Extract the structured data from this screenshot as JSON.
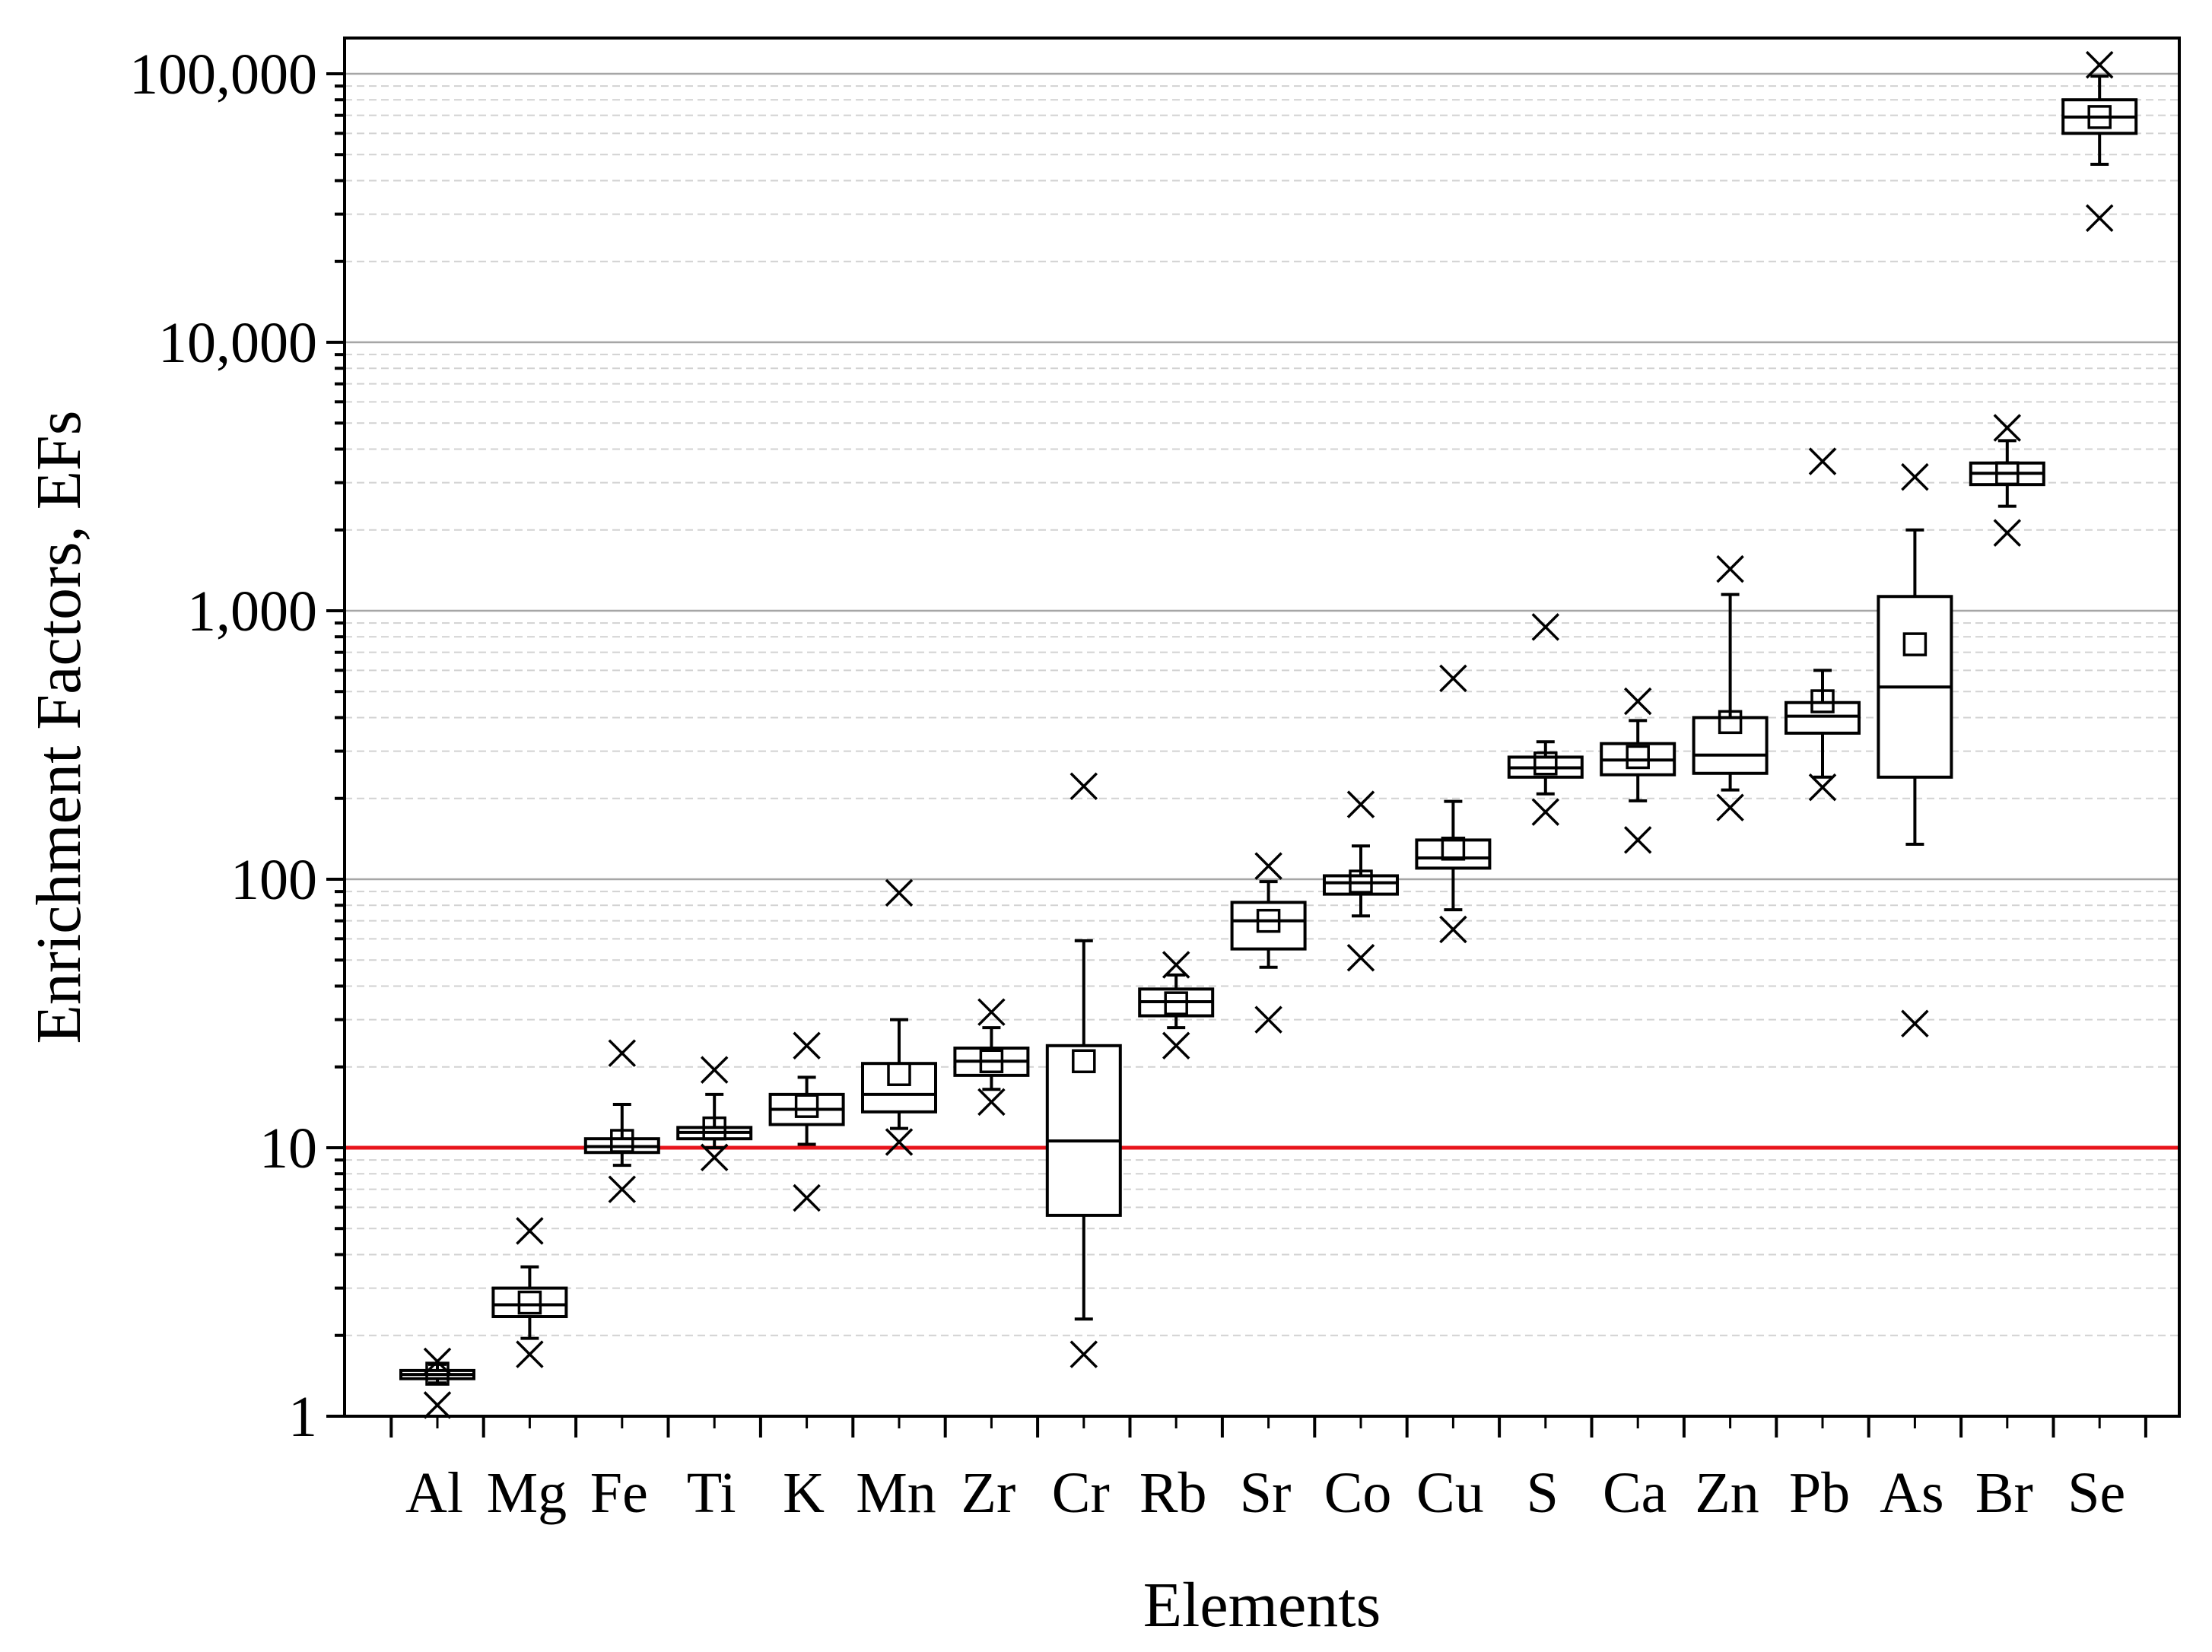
{
  "chart_data": {
    "type": "box",
    "title": "",
    "xlabel": "Elements",
    "ylabel": "Enrichment Factors, EFs",
    "yscale": "log",
    "ylim": [
      1,
      200000
    ],
    "ytick_values": [
      1,
      10,
      100,
      1000,
      10000,
      100000
    ],
    "ytick_labels": [
      "1",
      "10",
      "100",
      "1,000",
      "10,000",
      "100,000"
    ],
    "grid": "horizontal",
    "reference_line": {
      "value": 10,
      "color": "#e8141c"
    },
    "categories": [
      "Al",
      "Mg",
      "Fe",
      "Ti",
      "K",
      "Mn",
      "Zr",
      "Cr",
      "Rb",
      "Sr",
      "Co",
      "Cu",
      "S",
      "Ca",
      "Zn",
      "Pb",
      "As",
      "Br",
      "Se"
    ],
    "boxes": [
      {
        "name": "Al",
        "whisker_low": 1.33,
        "q1": 1.38,
        "median": 1.43,
        "q3": 1.48,
        "whisker_high": 1.56,
        "mean": 1.44,
        "min": 1.1,
        "max": 1.6
      },
      {
        "name": "Mg",
        "whisker_low": 1.95,
        "q1": 2.35,
        "median": 2.6,
        "q3": 3.0,
        "whisker_high": 3.6,
        "mean": 2.65,
        "min": 1.7,
        "max": 4.9
      },
      {
        "name": "Fe",
        "whisker_low": 8.6,
        "q1": 9.6,
        "median": 10.1,
        "q3": 10.8,
        "whisker_high": 14.5,
        "mean": 10.6,
        "min": 7.0,
        "max": 22.5
      },
      {
        "name": "Ti",
        "whisker_low": 10.0,
        "q1": 10.8,
        "median": 11.4,
        "q3": 11.9,
        "whisker_high": 15.8,
        "mean": 11.8,
        "min": 9.2,
        "max": 19.5
      },
      {
        "name": "K",
        "whisker_low": 10.3,
        "q1": 12.2,
        "median": 13.9,
        "q3": 15.8,
        "whisker_high": 18.3,
        "mean": 14.3,
        "min": 6.5,
        "max": 24.0
      },
      {
        "name": "Mn",
        "whisker_low": 11.8,
        "q1": 13.6,
        "median": 15.8,
        "q3": 20.6,
        "whisker_high": 30.0,
        "mean": 18.8,
        "min": 10.5,
        "max": 89.0
      },
      {
        "name": "Zr",
        "whisker_low": 16.5,
        "q1": 18.6,
        "median": 21.0,
        "q3": 23.5,
        "whisker_high": 28.0,
        "mean": 21.0,
        "min": 14.8,
        "max": 32.0
      },
      {
        "name": "Cr",
        "whisker_low": 2.3,
        "q1": 5.6,
        "median": 10.6,
        "q3": 24.0,
        "whisker_high": 59.0,
        "mean": 21.0,
        "min": 1.7,
        "max": 222.0
      },
      {
        "name": "Rb",
        "whisker_low": 28.0,
        "q1": 31.0,
        "median": 35.0,
        "q3": 39.0,
        "whisker_high": 44.0,
        "mean": 34.5,
        "min": 24.0,
        "max": 48.0
      },
      {
        "name": "Sr",
        "whisker_low": 47.0,
        "q1": 55.0,
        "median": 70.0,
        "q3": 82.0,
        "whisker_high": 98.0,
        "mean": 70.0,
        "min": 30.0,
        "max": 112.0
      },
      {
        "name": "Co",
        "whisker_low": 73.0,
        "q1": 88.0,
        "median": 97.0,
        "q3": 103.0,
        "whisker_high": 133.0,
        "mean": 98.0,
        "min": 51.0,
        "max": 190.0
      },
      {
        "name": "Cu",
        "whisker_low": 77.0,
        "q1": 110.0,
        "median": 120.0,
        "q3": 140.0,
        "whisker_high": 195.0,
        "mean": 130.0,
        "min": 65.0,
        "max": 560.0
      },
      {
        "name": "S",
        "whisker_low": 208.0,
        "q1": 240.0,
        "median": 260.0,
        "q3": 285.0,
        "whisker_high": 325.0,
        "mean": 270.0,
        "min": 178.0,
        "max": 870.0
      },
      {
        "name": "Ca",
        "whisker_low": 196.0,
        "q1": 245.0,
        "median": 278.0,
        "q3": 320.0,
        "whisker_high": 390.0,
        "mean": 285.0,
        "min": 140.0,
        "max": 460.0
      },
      {
        "name": "Zn",
        "whisker_low": 215.0,
        "q1": 248.0,
        "median": 290.0,
        "q3": 400.0,
        "whisker_high": 1150.0,
        "mean": 385.0,
        "min": 185.0,
        "max": 1430.0
      },
      {
        "name": "Pb",
        "whisker_low": 240.0,
        "q1": 350.0,
        "median": 405.0,
        "q3": 455.0,
        "whisker_high": 600.0,
        "mean": 460.0,
        "min": 220.0,
        "max": 3600.0
      },
      {
        "name": "As",
        "whisker_low": 135.0,
        "q1": 240.0,
        "median": 520.0,
        "q3": 1130.0,
        "whisker_high": 2000.0,
        "mean": 750.0,
        "min": 29.0,
        "max": 3150.0
      },
      {
        "name": "Br",
        "whisker_low": 2450.0,
        "q1": 2950.0,
        "median": 3250.0,
        "q3": 3550.0,
        "whisker_high": 4300.0,
        "mean": 3250.0,
        "min": 1950.0,
        "max": 4800.0
      },
      {
        "name": "Se",
        "whisker_low": 46000.0,
        "q1": 60000.0,
        "median": 69000.0,
        "q3": 80000.0,
        "whisker_high": 98000.0,
        "mean": 69000.0,
        "min": 29000.0,
        "max": 108000.0
      }
    ]
  }
}
